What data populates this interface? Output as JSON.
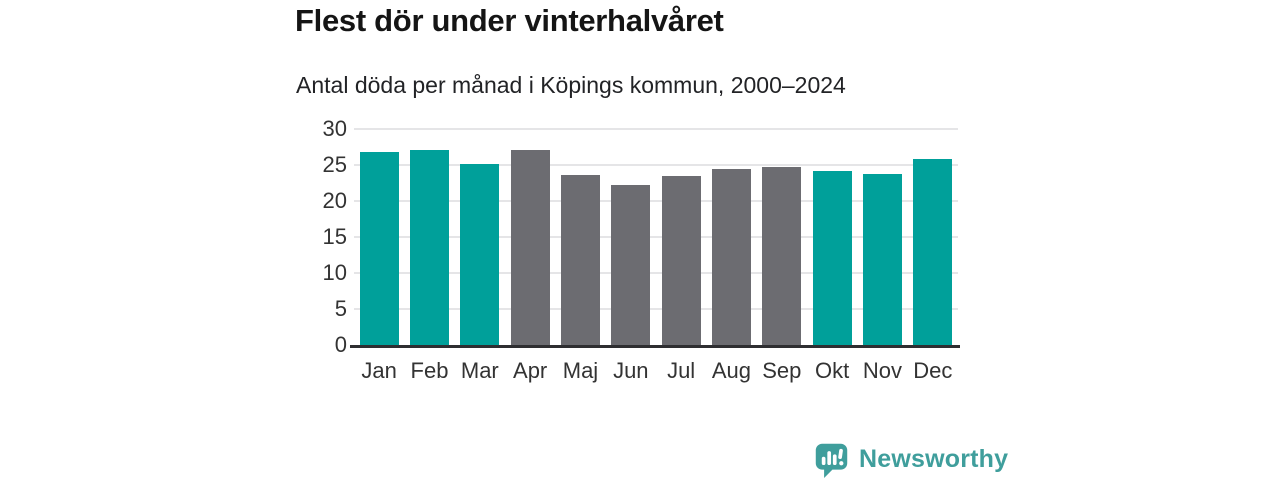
{
  "header": {
    "title": "Flest dör under vinterhalvåret",
    "subtitle": "Antal döda per månad i Köpings kommun, 2000–2024"
  },
  "chart_data": {
    "type": "bar",
    "title": "Flest dör under vinterhalvåret",
    "subtitle": "Antal döda per månad i Köpings kommun, 2000–2024",
    "categories": [
      "Jan",
      "Feb",
      "Mar",
      "Apr",
      "Maj",
      "Jun",
      "Jul",
      "Aug",
      "Sep",
      "Okt",
      "Nov",
      "Dec"
    ],
    "values": [
      26.8,
      27.1,
      25.1,
      27.1,
      23.6,
      22.2,
      23.5,
      24.5,
      24.7,
      24.1,
      23.8,
      25.8
    ],
    "bar_colors": [
      "teal",
      "teal",
      "teal",
      "gray",
      "gray",
      "gray",
      "gray",
      "gray",
      "gray",
      "teal",
      "teal",
      "teal"
    ],
    "ylabel": "",
    "xlabel": "",
    "ylim": [
      0,
      30
    ],
    "yticks": [
      0,
      5,
      10,
      15,
      20,
      25,
      30
    ],
    "grid": true,
    "legend_position": "none"
  },
  "colors": {
    "teal": "#00A09A",
    "gray": "#6C6C71",
    "gridline": "#E5E5E7",
    "axis": "#2E2E31",
    "brand": "#3F9E9C",
    "title_text": "#151515",
    "tick_text": "#333333"
  },
  "footer": {
    "brand": "Newsworthy"
  }
}
